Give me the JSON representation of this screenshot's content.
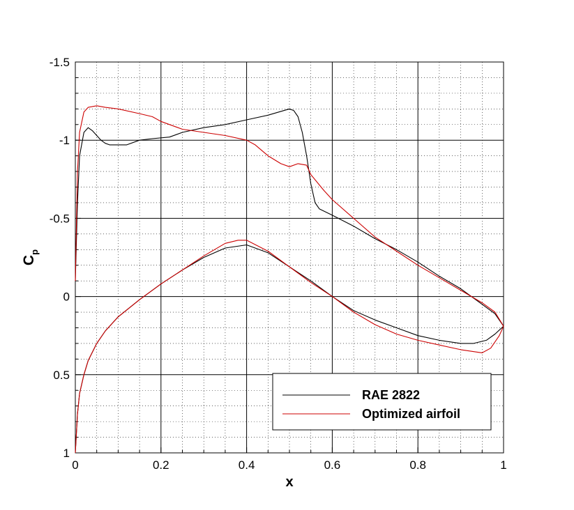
{
  "chart_data": {
    "type": "line",
    "xlabel": "x",
    "ylabel": "C",
    "ylabel_sub": "p",
    "xlim": [
      0,
      1
    ],
    "ylim": [
      -1.5,
      1
    ],
    "y_inverted": true,
    "grid": true,
    "x_ticks": [
      0,
      0.2,
      0.4,
      0.6,
      0.8,
      1
    ],
    "x_tick_labels": [
      "0",
      "0.2",
      "0.4",
      "0.6",
      "0.8",
      "1"
    ],
    "y_ticks": [
      -1.5,
      -1,
      -0.5,
      0,
      0.5,
      1
    ],
    "y_tick_labels": [
      "-1.5",
      "-1",
      "-0.5",
      "0",
      "0.5",
      "1"
    ],
    "legend_position": "bottom-right",
    "series": [
      {
        "name": "RAE 2822",
        "color": "#000000",
        "upper": [
          [
            0,
            -0.1
          ],
          [
            0.005,
            -0.6
          ],
          [
            0.01,
            -0.9
          ],
          [
            0.02,
            -1.05
          ],
          [
            0.03,
            -1.08
          ],
          [
            0.04,
            -1.06
          ],
          [
            0.05,
            -1.03
          ],
          [
            0.06,
            -1.0
          ],
          [
            0.07,
            -0.98
          ],
          [
            0.08,
            -0.97
          ],
          [
            0.1,
            -0.97
          ],
          [
            0.12,
            -0.97
          ],
          [
            0.15,
            -1.0
          ],
          [
            0.18,
            -1.01
          ],
          [
            0.22,
            -1.02
          ],
          [
            0.25,
            -1.05
          ],
          [
            0.3,
            -1.08
          ],
          [
            0.35,
            -1.1
          ],
          [
            0.4,
            -1.13
          ],
          [
            0.45,
            -1.16
          ],
          [
            0.5,
            -1.2
          ],
          [
            0.51,
            -1.19
          ],
          [
            0.52,
            -1.15
          ],
          [
            0.53,
            -1.05
          ],
          [
            0.54,
            -0.9
          ],
          [
            0.55,
            -0.72
          ],
          [
            0.56,
            -0.6
          ],
          [
            0.57,
            -0.56
          ],
          [
            0.6,
            -0.52
          ],
          [
            0.65,
            -0.45
          ],
          [
            0.7,
            -0.37
          ],
          [
            0.75,
            -0.3
          ],
          [
            0.8,
            -0.22
          ],
          [
            0.85,
            -0.13
          ],
          [
            0.9,
            -0.05
          ],
          [
            0.95,
            0.05
          ],
          [
            0.98,
            0.11
          ],
          [
            1.0,
            0.19
          ]
        ],
        "lower": [
          [
            0,
            1.0
          ],
          [
            0.005,
            0.75
          ],
          [
            0.01,
            0.62
          ],
          [
            0.02,
            0.5
          ],
          [
            0.03,
            0.41
          ],
          [
            0.05,
            0.3
          ],
          [
            0.07,
            0.22
          ],
          [
            0.1,
            0.13
          ],
          [
            0.15,
            0.02
          ],
          [
            0.2,
            -0.08
          ],
          [
            0.25,
            -0.17
          ],
          [
            0.3,
            -0.25
          ],
          [
            0.35,
            -0.31
          ],
          [
            0.4,
            -0.33
          ],
          [
            0.45,
            -0.28
          ],
          [
            0.5,
            -0.19
          ],
          [
            0.55,
            -0.1
          ],
          [
            0.6,
            0.0
          ],
          [
            0.65,
            0.09
          ],
          [
            0.7,
            0.15
          ],
          [
            0.75,
            0.2
          ],
          [
            0.8,
            0.25
          ],
          [
            0.85,
            0.28
          ],
          [
            0.9,
            0.3
          ],
          [
            0.93,
            0.3
          ],
          [
            0.96,
            0.28
          ],
          [
            0.98,
            0.24
          ],
          [
            1.0,
            0.19
          ]
        ]
      },
      {
        "name": "Optimized airfoil",
        "color": "#cc0000",
        "upper": [
          [
            0,
            -0.1
          ],
          [
            0.005,
            -0.8
          ],
          [
            0.01,
            -1.05
          ],
          [
            0.02,
            -1.18
          ],
          [
            0.03,
            -1.21
          ],
          [
            0.05,
            -1.22
          ],
          [
            0.07,
            -1.21
          ],
          [
            0.1,
            -1.2
          ],
          [
            0.15,
            -1.17
          ],
          [
            0.18,
            -1.15
          ],
          [
            0.2,
            -1.12
          ],
          [
            0.25,
            -1.07
          ],
          [
            0.3,
            -1.05
          ],
          [
            0.35,
            -1.03
          ],
          [
            0.4,
            -1.0
          ],
          [
            0.42,
            -0.97
          ],
          [
            0.45,
            -0.9
          ],
          [
            0.48,
            -0.85
          ],
          [
            0.5,
            -0.83
          ],
          [
            0.52,
            -0.85
          ],
          [
            0.54,
            -0.84
          ],
          [
            0.55,
            -0.78
          ],
          [
            0.58,
            -0.68
          ],
          [
            0.6,
            -0.62
          ],
          [
            0.65,
            -0.5
          ],
          [
            0.7,
            -0.38
          ],
          [
            0.75,
            -0.29
          ],
          [
            0.8,
            -0.2
          ],
          [
            0.85,
            -0.12
          ],
          [
            0.9,
            -0.04
          ],
          [
            0.95,
            0.04
          ],
          [
            0.98,
            0.1
          ],
          [
            1.0,
            0.19
          ]
        ],
        "lower": [
          [
            0,
            1.0
          ],
          [
            0.005,
            0.75
          ],
          [
            0.01,
            0.62
          ],
          [
            0.02,
            0.5
          ],
          [
            0.03,
            0.41
          ],
          [
            0.05,
            0.3
          ],
          [
            0.07,
            0.22
          ],
          [
            0.1,
            0.13
          ],
          [
            0.15,
            0.02
          ],
          [
            0.2,
            -0.08
          ],
          [
            0.25,
            -0.17
          ],
          [
            0.3,
            -0.26
          ],
          [
            0.35,
            -0.34
          ],
          [
            0.38,
            -0.36
          ],
          [
            0.4,
            -0.36
          ],
          [
            0.45,
            -0.29
          ],
          [
            0.5,
            -0.19
          ],
          [
            0.55,
            -0.09
          ],
          [
            0.6,
            0.0
          ],
          [
            0.65,
            0.1
          ],
          [
            0.7,
            0.18
          ],
          [
            0.75,
            0.24
          ],
          [
            0.8,
            0.28
          ],
          [
            0.85,
            0.31
          ],
          [
            0.9,
            0.34
          ],
          [
            0.95,
            0.36
          ],
          [
            0.97,
            0.33
          ],
          [
            0.99,
            0.25
          ],
          [
            1.0,
            0.19
          ]
        ]
      }
    ]
  }
}
